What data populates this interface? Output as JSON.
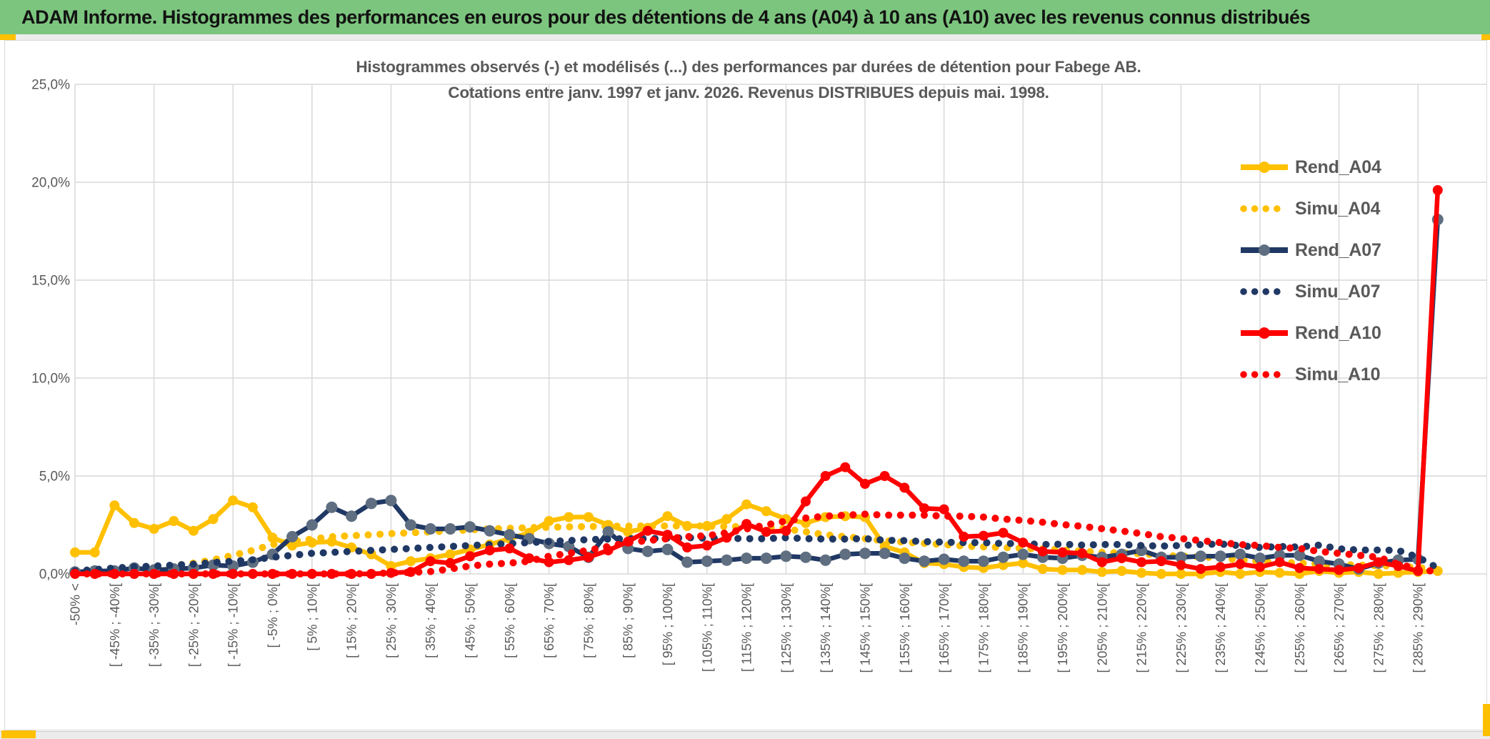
{
  "header": {
    "title": "ADAM Informe. Histogrammes des performances en euros pour des détentions de 4 ans (A04) à 10 ans (A10) avec les revenus connus distribués"
  },
  "colors": {
    "banner_green": "#7CC57E",
    "accent_yellow": "#FFC000",
    "grid_gray": "#D9D9D9",
    "text_gray": "#595959",
    "series_gold": "#FFC000",
    "series_navy": "#203864",
    "series_navy_marker": "#5F6E80",
    "series_red": "#FF0000"
  },
  "chart_data": {
    "type": "line",
    "title_line1": "Histogrammes observés (-) et modélisés (...) des performances par durées de détention pour Fabege AB.",
    "title_line2": "Cotations entre janv. 1997 et janv. 2026. Revenus DISTRIBUES depuis mai. 1998.",
    "ylabel": "",
    "xlabel": "",
    "ylim": [
      0,
      25
    ],
    "grid": true,
    "legend_position": "right",
    "y_ticks": [
      "0,0%",
      "5,0%",
      "10,0%",
      "15,0%",
      "20,0%",
      "25,0%"
    ],
    "bins_per_label": 2,
    "n_points": 70,
    "categories": [
      "-50% <",
      "[ -45% ; -40%[",
      "[ -35% ; -30%[",
      "[ -25% ; -20%[",
      "[ -15% ; -10%[",
      "[ -5% ; 0%[",
      "[ 5% ; 10%[",
      "[ 15% ; 20%[",
      "[ 25% ; 30%[",
      "[ 35% ; 40%[",
      "[ 45% ; 50%[",
      "[ 55% ; 60%[",
      "[ 65% ; 70%[",
      "[ 75% ; 80%[",
      "[ 85% ; 90%[",
      "[ 95% ; 100%[",
      "[ 105% ; 110%[",
      "[ 115% ; 120%[",
      "[ 125% ; 130%[",
      "[ 135% ; 140%[",
      "[ 145% ; 150%[",
      "[ 155% ; 160%[",
      "[ 165% ; 170%[",
      "[ 175% ; 180%[",
      "[ 185% ; 190%[",
      "[ 195% ; 200%[",
      "[ 205% ; 210%[",
      "[ 215% ; 220%[",
      "[ 225% ; 230%[",
      "[ 235% ; 240%[",
      "[ 245% ; 250%[",
      "[ 255% ; 260%[",
      "[ 265% ; 270%[",
      "[ 275% ; 280%[",
      "[ 285% ; 290%["
    ],
    "series": [
      {
        "name": "Rend_A04",
        "color": "#FFC000",
        "style": "solid",
        "marker": "#FFC000",
        "marker_r": 7,
        "values": [
          1.1,
          1.1,
          3.5,
          2.6,
          2.3,
          2.7,
          2.2,
          2.8,
          3.75,
          3.4,
          1.85,
          1.45,
          1.6,
          1.65,
          1.35,
          1.0,
          0.4,
          0.65,
          0.8,
          1.0,
          1.25,
          1.5,
          1.8,
          2.1,
          2.7,
          2.9,
          2.9,
          2.5,
          2.15,
          2.35,
          2.95,
          2.45,
          2.45,
          2.8,
          3.55,
          3.2,
          2.8,
          2.6,
          2.9,
          2.95,
          2.9,
          1.4,
          1.1,
          0.55,
          0.5,
          0.35,
          0.3,
          0.45,
          0.55,
          0.25,
          0.2,
          0.2,
          0.1,
          0.15,
          0.05,
          0.0,
          0.0,
          0.0,
          0.1,
          0.0,
          0.1,
          0.05,
          0.0,
          0.15,
          0.05,
          0.1,
          0.0,
          0.05,
          0.1,
          0.15
        ]
      },
      {
        "name": "Simu_A04",
        "color": "#FFC000",
        "style": "dotted",
        "marker": "#FFC000",
        "marker_r": 0,
        "values": [
          0.05,
          0.1,
          0.15,
          0.22,
          0.3,
          0.42,
          0.55,
          0.72,
          0.95,
          1.2,
          1.5,
          1.65,
          1.78,
          1.9,
          1.95,
          2.0,
          2.06,
          2.1,
          2.15,
          2.2,
          2.25,
          2.3,
          2.33,
          2.36,
          2.38,
          2.4,
          2.42,
          2.43,
          2.44,
          2.45,
          2.45,
          2.45,
          2.44,
          2.42,
          2.4,
          2.38,
          2.3,
          2.15,
          2.0,
          1.9,
          1.8,
          1.7,
          1.62,
          1.56,
          1.5,
          1.42,
          1.38,
          1.35,
          1.3,
          1.28,
          1.22,
          1.16,
          1.1,
          1.07,
          1.03,
          0.95,
          0.9,
          0.88,
          0.8,
          0.72,
          0.65,
          0.6,
          0.55,
          0.5,
          0.48,
          0.45,
          0.42,
          0.4,
          0.32,
          0.25
        ]
      },
      {
        "name": "Rend_A07",
        "color": "#203864",
        "style": "solid",
        "marker": "#5F6E80",
        "marker_r": 8,
        "values": [
          0.1,
          0.15,
          0.15,
          0.3,
          0.2,
          0.25,
          0.3,
          0.45,
          0.4,
          0.6,
          1.0,
          1.9,
          2.5,
          3.4,
          2.95,
          3.6,
          3.75,
          2.5,
          2.3,
          2.3,
          2.4,
          2.2,
          2.0,
          1.8,
          1.55,
          1.4,
          0.85,
          2.15,
          1.3,
          1.15,
          1.25,
          0.6,
          0.65,
          0.7,
          0.8,
          0.8,
          0.9,
          0.85,
          0.7,
          1.0,
          1.05,
          1.05,
          0.8,
          0.65,
          0.75,
          0.65,
          0.65,
          0.85,
          1.0,
          0.85,
          0.8,
          0.95,
          0.85,
          1.0,
          1.2,
          0.85,
          0.85,
          0.9,
          0.9,
          1.0,
          0.8,
          0.95,
          0.95,
          0.65,
          0.5,
          0.25,
          0.55,
          0.7,
          0.75,
          18.1
        ]
      },
      {
        "name": "Simu_A07",
        "color": "#203864",
        "style": "dotted",
        "marker": "#203864",
        "marker_r": 0,
        "values": [
          0.15,
          0.22,
          0.3,
          0.36,
          0.4,
          0.45,
          0.5,
          0.58,
          0.65,
          0.72,
          0.85,
          0.95,
          1.05,
          1.1,
          1.15,
          1.2,
          1.25,
          1.3,
          1.35,
          1.4,
          1.45,
          1.5,
          1.55,
          1.6,
          1.65,
          1.7,
          1.75,
          1.78,
          1.8,
          1.8,
          1.82,
          1.85,
          1.82,
          1.82,
          1.8,
          1.8,
          1.85,
          1.8,
          1.78,
          1.78,
          1.8,
          1.72,
          1.7,
          1.65,
          1.62,
          1.6,
          1.6,
          1.55,
          1.55,
          1.5,
          1.52,
          1.47,
          1.5,
          1.5,
          1.45,
          1.42,
          1.45,
          1.5,
          1.53,
          1.44,
          1.35,
          1.4,
          1.37,
          1.47,
          1.28,
          1.22,
          1.22,
          1.2,
          0.85,
          0.3
        ]
      },
      {
        "name": "Rend_A10",
        "color": "#FF0000",
        "style": "solid",
        "marker": "#FF0000",
        "marker_r": 7,
        "values": [
          0,
          0,
          0,
          0,
          0,
          0,
          0,
          0,
          0,
          0,
          0,
          0,
          0,
          0,
          0,
          0,
          0.05,
          0.1,
          0.65,
          0.55,
          0.9,
          1.2,
          1.3,
          0.8,
          0.6,
          0.7,
          0.85,
          1.2,
          1.65,
          2.2,
          2.0,
          1.35,
          1.45,
          1.85,
          2.55,
          2.15,
          2.2,
          3.7,
          5.0,
          5.45,
          4.6,
          5.0,
          4.4,
          3.35,
          3.3,
          1.9,
          1.95,
          2.1,
          1.6,
          1.15,
          1.1,
          1.05,
          0.6,
          0.8,
          0.6,
          0.65,
          0.45,
          0.25,
          0.35,
          0.5,
          0.35,
          0.6,
          0.3,
          0.25,
          0.2,
          0.3,
          0.6,
          0.4,
          0.15,
          19.6
        ]
      },
      {
        "name": "Simu_A10",
        "color": "#FF0000",
        "style": "dotted",
        "marker": "#FF0000",
        "marker_r": 0,
        "values": [
          0,
          0,
          0,
          0,
          0,
          0,
          0,
          0,
          0,
          0,
          0,
          0,
          0,
          0,
          0,
          0.02,
          0.05,
          0.08,
          0.12,
          0.25,
          0.4,
          0.5,
          0.55,
          0.65,
          0.9,
          1.05,
          1.2,
          1.4,
          1.6,
          1.7,
          1.8,
          1.9,
          1.95,
          2.1,
          2.3,
          2.5,
          2.7,
          2.85,
          2.95,
          3.0,
          3.05,
          3.0,
          3.0,
          3.0,
          2.95,
          2.95,
          2.9,
          2.8,
          2.73,
          2.64,
          2.52,
          2.43,
          2.31,
          2.19,
          2.06,
          1.9,
          1.81,
          1.7,
          1.6,
          1.5,
          1.45,
          1.35,
          1.3,
          1.15,
          1.05,
          0.95,
          0.85,
          0.5,
          0.25,
          0.1
        ]
      }
    ]
  }
}
